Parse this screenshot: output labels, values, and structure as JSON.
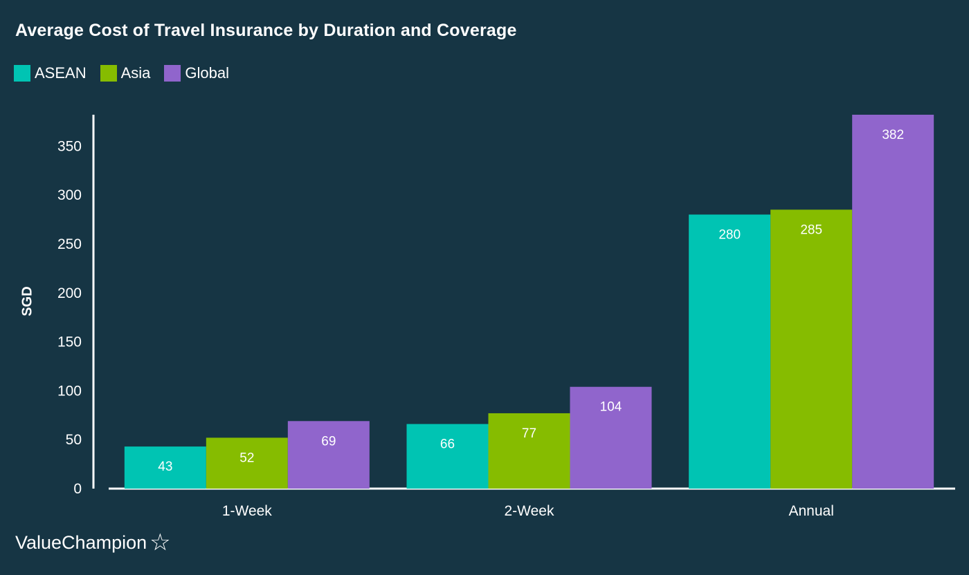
{
  "chart_data": {
    "type": "bar",
    "title": "Average Cost of Travel Insurance by Duration and Coverage",
    "xlabel": "",
    "ylabel": "SGD",
    "categories": [
      "1-Week",
      "2-Week",
      "Annual"
    ],
    "series": [
      {
        "name": "ASEAN",
        "color": "#00c4b3",
        "values": [
          43,
          66,
          280
        ]
      },
      {
        "name": "Asia",
        "color": "#86bc00",
        "values": [
          52,
          77,
          285
        ]
      },
      {
        "name": "Global",
        "color": "#9065cc",
        "values": [
          69,
          104,
          382
        ]
      }
    ],
    "ylim": [
      0,
      382
    ],
    "yticks": [
      0,
      50,
      100,
      150,
      200,
      250,
      300,
      350
    ],
    "grid": false,
    "legend": "top-left"
  },
  "brand": {
    "name": "ValueChampion",
    "icon": "star-outline-icon"
  }
}
